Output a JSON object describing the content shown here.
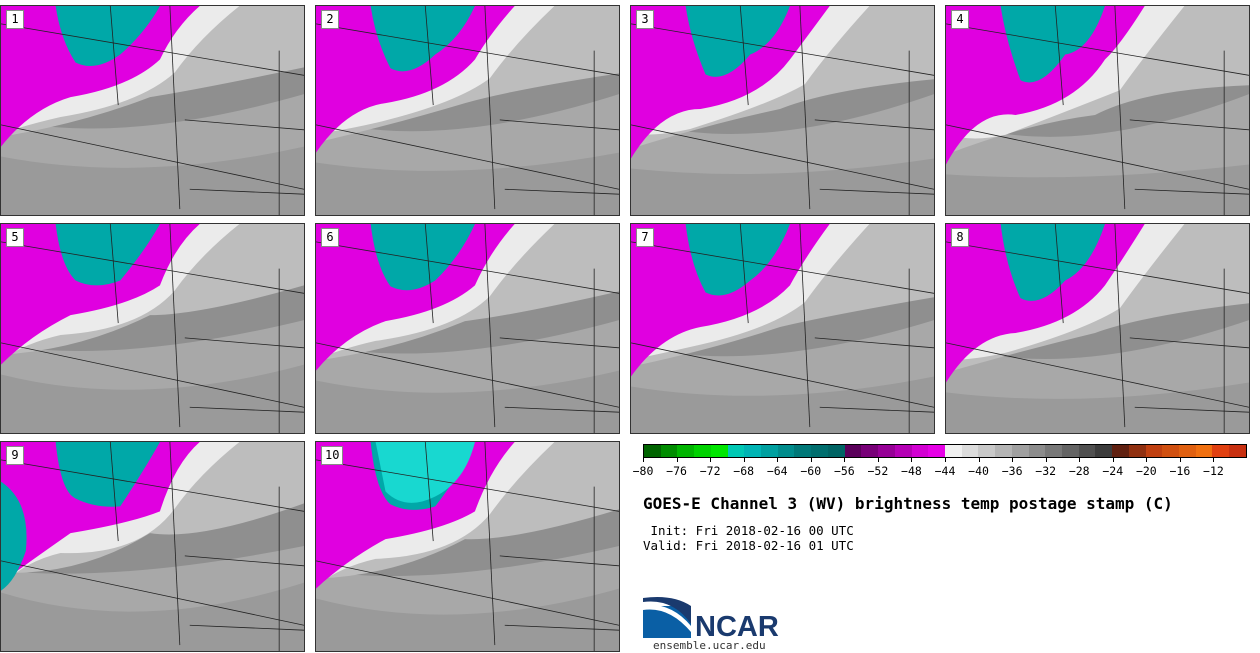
{
  "panels": [
    {
      "label": "1"
    },
    {
      "label": "2"
    },
    {
      "label": "3"
    },
    {
      "label": "4"
    },
    {
      "label": "5"
    },
    {
      "label": "6"
    },
    {
      "label": "7"
    },
    {
      "label": "8"
    },
    {
      "label": "9"
    },
    {
      "label": "10"
    }
  ],
  "colorbar": {
    "tick_labels": [
      "−80",
      "−76",
      "−72",
      "−68",
      "−64",
      "−60",
      "−56",
      "−52",
      "−48",
      "−44",
      "−40",
      "−36",
      "−32",
      "−28",
      "−24",
      "−20",
      "−16",
      "−12"
    ],
    "colors": [
      "#006400",
      "#008c00",
      "#00b400",
      "#00d200",
      "#00e600",
      "#00c8b4",
      "#00b4b4",
      "#00a0a0",
      "#008c8c",
      "#007878",
      "#006e6e",
      "#006464",
      "#5a005a",
      "#780078",
      "#960096",
      "#b400b4",
      "#d200d2",
      "#e600e6",
      "#f0f0f0",
      "#dcdcdc",
      "#c8c8c8",
      "#b4b4b4",
      "#a0a0a0",
      "#8c8c8c",
      "#787878",
      "#646464",
      "#505050",
      "#3c3c3c",
      "#602010",
      "#903010",
      "#c04010",
      "#d05010",
      "#e06010",
      "#f07010",
      "#e04010",
      "#c83010"
    ]
  },
  "title": "GOES-E Channel 3 (WV) brightness temp postage stamp (C)",
  "init": " Init: Fri 2018-02-16 00 UTC",
  "valid": "Valid: Fri 2018-02-16 01 UTC",
  "logo": {
    "text": "NCAR",
    "colors": {
      "blue": "#0a5fa5",
      "navy": "#1a3a6e"
    }
  },
  "website": "ensemble.ucar.edu",
  "colors": {
    "magenta": "#e000e0",
    "teal": "#00a8a8",
    "light": "#ebebeb",
    "mid": "#bdbdbd",
    "dark": "#8f8f8f"
  }
}
